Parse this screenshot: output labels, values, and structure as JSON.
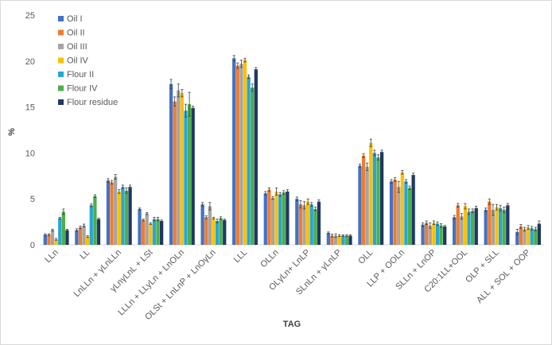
{
  "chart_data": {
    "type": "bar",
    "title": "",
    "xlabel": "TAG",
    "ylabel": "%",
    "ylim": [
      0,
      25
    ],
    "yticks": [
      0,
      5,
      10,
      15,
      20,
      25
    ],
    "grid": false,
    "legend_position": "top-left",
    "categories": [
      "LLn",
      "LL",
      "LnLLn + γLnLLn",
      "γLnγLnL + LSt",
      "LLLn + LLyLn + LnOLn",
      "OLSt + LnLnP + LnOγLn",
      "LLL",
      "OLLn",
      "OLγLn+ LnLP",
      "SLnLn + γLnLP",
      "OLL",
      "LLP + OOLn",
      "SLLn + LnOP",
      "C20:1LL+OOL",
      "OLP + SLL",
      "ALL + SOL + OOP"
    ],
    "series": [
      {
        "name": "Oil I",
        "color": "#4472C4",
        "values": [
          1.1,
          1.6,
          7.0,
          3.9,
          17.5,
          4.4,
          20.3,
          5.6,
          5.0,
          1.3,
          8.6,
          6.9,
          2.2,
          3.0,
          3.8,
          1.4
        ],
        "errors": [
          0.1,
          0.15,
          0.2,
          0.1,
          0.5,
          0.2,
          0.3,
          0.2,
          0.2,
          0.1,
          0.2,
          0.2,
          0.2,
          0.2,
          0.2,
          0.3
        ]
      },
      {
        "name": "Oil II",
        "color": "#ED7D31",
        "values": [
          1.1,
          1.9,
          6.8,
          2.7,
          15.6,
          3.0,
          19.5,
          6.0,
          4.4,
          1.0,
          9.7,
          7.1,
          2.4,
          4.3,
          4.7,
          2.0
        ],
        "errors": [
          0.1,
          0.15,
          0.2,
          0.1,
          0.5,
          0.15,
          0.3,
          0.2,
          0.4,
          0.15,
          0.2,
          0.2,
          0.2,
          0.2,
          0.3,
          0.2
        ]
      },
      {
        "name": "Oil III",
        "color": "#A5A5A5",
        "values": [
          1.6,
          2.1,
          7.4,
          3.4,
          16.8,
          4.2,
          19.7,
          5.1,
          4.3,
          1.0,
          8.5,
          6.3,
          2.1,
          3.1,
          3.8,
          1.7
        ],
        "errors": [
          0.1,
          0.15,
          0.25,
          0.1,
          0.7,
          0.4,
          0.4,
          0.15,
          0.4,
          0.2,
          0.4,
          0.6,
          0.3,
          0.3,
          0.6,
          0.2
        ]
      },
      {
        "name": "Oil IV",
        "color": "#FFC000",
        "values": [
          0.6,
          0.9,
          5.8,
          2.3,
          16.5,
          2.9,
          20.1,
          5.8,
          4.7,
          1.0,
          11.1,
          7.9,
          2.4,
          4.2,
          4.1,
          1.9
        ],
        "errors": [
          0.1,
          0.1,
          0.2,
          0.1,
          0.4,
          0.1,
          0.2,
          0.4,
          0.3,
          0.1,
          0.4,
          0.2,
          0.2,
          0.3,
          0.3,
          0.2
        ]
      },
      {
        "name": "Flour II",
        "color": "#28A5D7",
        "values": [
          2.9,
          4.3,
          6.3,
          2.8,
          14.6,
          2.6,
          18.3,
          5.5,
          4.4,
          1.0,
          10.0,
          6.9,
          2.3,
          3.6,
          4.0,
          1.8
        ],
        "errors": [
          0.1,
          0.15,
          0.2,
          0.2,
          0.7,
          0.2,
          0.2,
          0.2,
          0.2,
          0.1,
          0.3,
          0.2,
          0.2,
          0.3,
          0.3,
          0.2
        ]
      },
      {
        "name": "Flour IV",
        "color": "#4DAF4A",
        "values": [
          3.6,
          5.3,
          5.9,
          2.8,
          15.3,
          2.9,
          17.1,
          5.7,
          3.9,
          1.0,
          9.5,
          6.2,
          2.1,
          3.7,
          3.8,
          1.7
        ],
        "errors": [
          0.3,
          0.15,
          0.3,
          0.2,
          1.3,
          0.15,
          0.4,
          0.2,
          0.2,
          0.1,
          0.3,
          0.2,
          0.2,
          0.2,
          0.3,
          0.2
        ]
      },
      {
        "name": "Flour residue",
        "color": "#1F3864",
        "values": [
          1.6,
          2.8,
          6.3,
          2.6,
          14.9,
          2.7,
          19.1,
          5.8,
          4.7,
          1.0,
          10.1,
          7.6,
          2.0,
          4.0,
          4.3,
          2.3
        ],
        "errors": [
          0.1,
          0.1,
          0.2,
          0.1,
          0.2,
          0.1,
          0.2,
          0.2,
          0.2,
          0.1,
          0.2,
          0.2,
          0.1,
          0.2,
          0.2,
          0.3
        ]
      }
    ]
  }
}
